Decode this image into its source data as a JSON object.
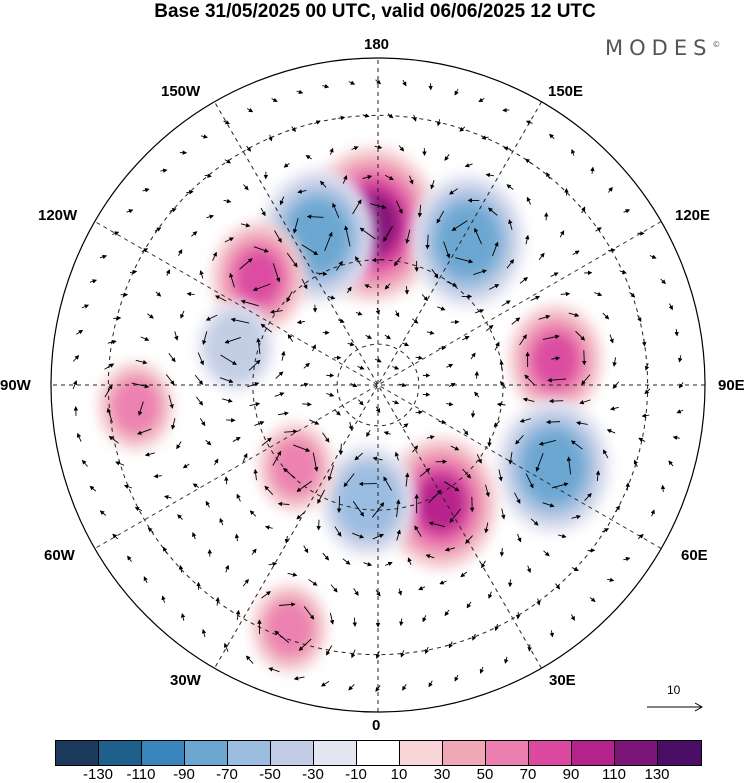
{
  "title": "Base 31/05/2025 00 UTC, valid 06/06/2025 12 UTC",
  "brand": "MODES",
  "brand_mark": "©",
  "longitude_labels": {
    "lon_180": "180",
    "lon_150w": "150W",
    "lon_150e": "150E",
    "lon_120w": "120W",
    "lon_120e": "120E",
    "lon_90w": "90W",
    "lon_90e": "90E",
    "lon_60w": "60W",
    "lon_60e": "60E",
    "lon_30w": "30W",
    "lon_30e": "30E",
    "lon_0": "0"
  },
  "reference_vector": {
    "label": "10",
    "magnitude": 10
  },
  "colorbar": {
    "ticks": [
      "-130",
      "-110",
      "-90",
      "-70",
      "-50",
      "-30",
      "-10",
      "10",
      "30",
      "50",
      "70",
      "90",
      "110",
      "130"
    ],
    "colors": [
      "#1b3a5c",
      "#1f5f8b",
      "#3a85bb",
      "#6ca6d1",
      "#9bbde0",
      "#c3cde5",
      "#e4e6f2",
      "#ffffff",
      "#f7d5d8",
      "#f0a8b8",
      "#eb7fb0",
      "#db4aa0",
      "#b4228c",
      "#7d1478",
      "#4a0e66"
    ]
  },
  "map_data": {
    "projection": "north polar stereographic",
    "field_anomalies": [
      {
        "name": "anomaly_180_pos",
        "lon": -178,
        "lat": 52,
        "value": 110
      },
      {
        "name": "anomaly_160w_neg",
        "lon": -158,
        "lat": 52,
        "value": -90
      },
      {
        "name": "anomaly_150e_neg",
        "lon": 148,
        "lat": 50,
        "value": -90
      },
      {
        "name": "anomaly_135w_pos",
        "lon": -132,
        "lat": 52,
        "value": 70
      },
      {
        "name": "anomaly_100e_pos",
        "lon": 98,
        "lat": 48,
        "value": 70
      },
      {
        "name": "anomaly_70e_neg",
        "lon": 65,
        "lat": 45,
        "value": -90
      },
      {
        "name": "anomaly_25e_pos",
        "lon": 28,
        "lat": 58,
        "value": 90
      },
      {
        "name": "anomaly_10w_neg",
        "lon": -5,
        "lat": 62,
        "value": -70
      },
      {
        "name": "anomaly_45w_pos",
        "lon": -45,
        "lat": 62,
        "value": 50
      },
      {
        "name": "anomaly_20w_pos",
        "lon": -20,
        "lat": 32,
        "value": 50
      },
      {
        "name": "anomaly_105w_neg",
        "lon": -105,
        "lat": 55,
        "value": -50
      },
      {
        "name": "anomaly_85w_pos",
        "lon": -85,
        "lat": 35,
        "value": 50
      }
    ]
  }
}
